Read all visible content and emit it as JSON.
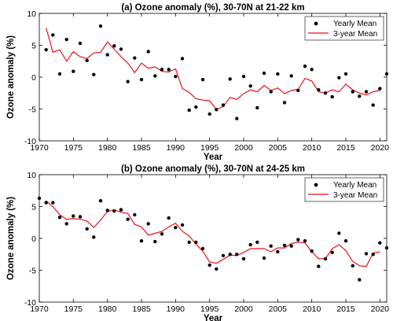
{
  "colors": {
    "points": "#000000",
    "line": "#e8101a",
    "axis": "#000000",
    "background": "#ffffff"
  },
  "chart_data": [
    {
      "type": "scatter",
      "title": "(a) Ozone anomaly (%), 30-70N at 21-22 km",
      "xlabel": "Year",
      "ylabel": "Ozone anomaly (%)",
      "xlim": [
        1970,
        2021
      ],
      "ylim": [
        -10,
        10
      ],
      "xticks": [
        1970,
        1975,
        1980,
        1985,
        1990,
        1995,
        2000,
        2005,
        2010,
        2015,
        2020
      ],
      "yticks": [
        -10,
        -5,
        0,
        5,
        10
      ],
      "legend": {
        "position": "top-right",
        "entries": [
          "Yearly Mean",
          "3-year Mean"
        ]
      },
      "series": [
        {
          "name": "Yearly Mean",
          "marker": "dot",
          "x": [
            1971,
            1972,
            1973,
            1974,
            1975,
            1976,
            1977,
            1978,
            1979,
            1980,
            1981,
            1982,
            1983,
            1984,
            1985,
            1986,
            1987,
            1988,
            1989,
            1990,
            1991,
            1992,
            1993,
            1994,
            1995,
            1996,
            1997,
            1998,
            1999,
            2000,
            2001,
            2002,
            2003,
            2004,
            2005,
            2006,
            2007,
            2008,
            2009,
            2010,
            2011,
            2012,
            2013,
            2014,
            2015,
            2016,
            2017,
            2018,
            2019,
            2020,
            2021
          ],
          "y": [
            4.3,
            6.6,
            0.5,
            5.9,
            0.9,
            5.3,
            2.6,
            0.4,
            8.0,
            3.5,
            4.9,
            4.4,
            -0.7,
            3.0,
            -0.4,
            4.0,
            0.2,
            1.2,
            1.2,
            0.1,
            2.9,
            -5.2,
            -4.7,
            -0.4,
            -5.8,
            -5.1,
            -4.4,
            -0.3,
            -6.5,
            0.1,
            -1.4,
            -4.8,
            0.6,
            -2.3,
            0.5,
            -4.0,
            0.2,
            -2.1,
            1.7,
            1.2,
            -2.0,
            -2.5,
            -3.1,
            -0.1,
            0.5,
            -2.3,
            -3.0,
            -2.3,
            -4.4,
            -1.8,
            0.5
          ]
        },
        {
          "name": "3-year Mean",
          "marker": "line",
          "x": [
            1971,
            1972,
            1973,
            1974,
            1975,
            1976,
            1977,
            1978,
            1979,
            1980,
            1981,
            1982,
            1983,
            1984,
            1985,
            1986,
            1987,
            1988,
            1989,
            1990,
            1991,
            1992,
            1993,
            1994,
            1995,
            1996,
            1997,
            1998,
            1999,
            2000,
            2001,
            2002,
            2003,
            2004,
            2005,
            2006,
            2007,
            2008,
            2009,
            2010,
            2011,
            2012,
            2013,
            2014,
            2015,
            2016,
            2017,
            2018,
            2019,
            2020
          ],
          "y": [
            7.7,
            3.9,
            4.3,
            2.5,
            4.0,
            3.2,
            2.9,
            3.8,
            3.9,
            5.5,
            4.4,
            3.2,
            2.2,
            0.7,
            2.2,
            1.4,
            1.6,
            0.9,
            0.8,
            1.3,
            -1.8,
            -2.4,
            -3.4,
            -3.6,
            -3.7,
            -5.1,
            -4.6,
            -3.2,
            -3.5,
            -2.6,
            -2.0,
            -2.3,
            -1.3,
            -2.1,
            -1.7,
            -2.6,
            -2.1,
            -1.9,
            -0.2,
            -0.6,
            -2.3,
            -2.5,
            -2.0,
            -2.3,
            -1.1,
            -2.0,
            -2.5,
            -2.8,
            -2.3,
            -2.1
          ]
        }
      ]
    },
    {
      "type": "scatter",
      "title": "(b) Ozone anomaly (%), 30-70N at 24-25 km",
      "xlabel": "Year",
      "ylabel": "Ozone anomaly (%)",
      "xlim": [
        1970,
        2021
      ],
      "ylim": [
        -10,
        10
      ],
      "xticks": [
        1970,
        1975,
        1980,
        1985,
        1990,
        1995,
        2000,
        2005,
        2010,
        2015,
        2020
      ],
      "yticks": [
        -10,
        -5,
        0,
        5,
        10
      ],
      "legend": {
        "position": "top-right",
        "entries": [
          "Yearly Mean",
          "3-year Mean"
        ]
      },
      "series": [
        {
          "name": "Yearly Mean",
          "marker": "dot",
          "x": [
            1970,
            1971,
            1972,
            1973,
            1974,
            1975,
            1976,
            1977,
            1978,
            1979,
            1980,
            1981,
            1982,
            1983,
            1984,
            1985,
            1986,
            1987,
            1988,
            1989,
            1990,
            1991,
            1992,
            1993,
            1994,
            1995,
            1996,
            1997,
            1998,
            1999,
            2000,
            2001,
            2002,
            2003,
            2004,
            2005,
            2006,
            2007,
            2008,
            2009,
            2010,
            2011,
            2012,
            2013,
            2014,
            2015,
            2016,
            2017,
            2018,
            2019,
            2020,
            2021
          ],
          "y": [
            6.3,
            5.6,
            5.6,
            3.3,
            2.3,
            3.5,
            3.4,
            1.5,
            0.2,
            5.9,
            4.4,
            4.3,
            4.5,
            3.0,
            3.7,
            -0.4,
            2.3,
            -0.5,
            0.7,
            3.2,
            1.7,
            2.1,
            -0.6,
            -0.6,
            -1.6,
            -4.2,
            -4.8,
            -2.7,
            -2.5,
            -2.5,
            -3.2,
            -1.0,
            -0.6,
            -3.1,
            -1.2,
            -2.1,
            -1.1,
            -1.2,
            -0.2,
            -0.4,
            -2.0,
            -4.4,
            -3.2,
            -2.2,
            0.8,
            -0.4,
            -4.3,
            -6.5,
            -2.4,
            -2.5,
            -0.7,
            -1.5
          ]
        },
        {
          "name": "3-year Mean",
          "marker": "line",
          "x": [
            1971,
            1972,
            1973,
            1974,
            1975,
            1976,
            1977,
            1978,
            1979,
            1980,
            1981,
            1982,
            1983,
            1984,
            1985,
            1986,
            1987,
            1988,
            1989,
            1990,
            1991,
            1992,
            1993,
            1994,
            1995,
            1996,
            1997,
            1998,
            1999,
            2000,
            2001,
            2002,
            2003,
            2004,
            2005,
            2006,
            2007,
            2008,
            2009,
            2010,
            2011,
            2012,
            2013,
            2014,
            2015,
            2016,
            2017,
            2018,
            2019,
            2020
          ],
          "y": [
            5.9,
            5.0,
            3.7,
            3.0,
            3.1,
            3.0,
            2.7,
            1.7,
            2.9,
            4.2,
            4.5,
            4.1,
            3.9,
            2.2,
            1.8,
            0.5,
            0.8,
            1.1,
            1.8,
            2.4,
            1.1,
            0.4,
            -0.9,
            -2.0,
            -3.7,
            -3.9,
            -3.3,
            -2.6,
            -2.7,
            -2.2,
            -1.6,
            -1.6,
            -1.6,
            -2.1,
            -1.5,
            -1.5,
            -0.8,
            -0.6,
            -0.7,
            -2.1,
            -3.2,
            -3.2,
            -1.6,
            -1.0,
            -1.9,
            -3.6,
            -4.3,
            -4.4,
            -2.3,
            -2.1
          ]
        }
      ]
    }
  ]
}
